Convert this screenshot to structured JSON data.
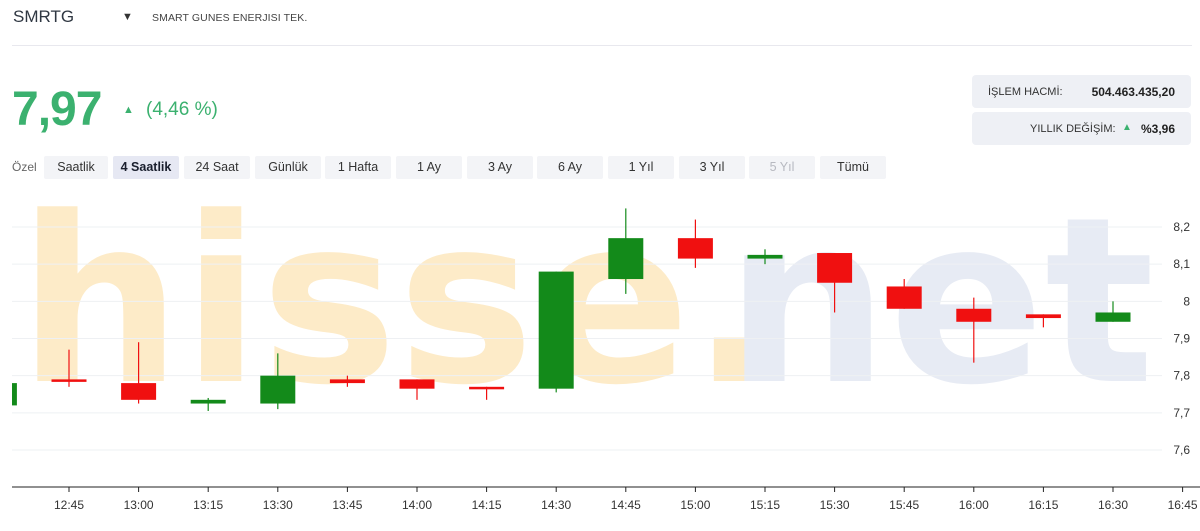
{
  "header": {
    "ticker": "SMRTG",
    "company": "SMART GUNES ENERJISI TEK."
  },
  "quote": {
    "price": "7,97",
    "change_pct": "(4,46 %)",
    "direction": "up"
  },
  "stats": {
    "volume_label": "İŞLEM HACMİ:",
    "volume_value": "504.463.435,20",
    "yearly_label": "YILLIK DEĞİŞİM:",
    "yearly_value": "%3,96"
  },
  "ranges": {
    "label": "Özel",
    "buttons": [
      "Saatlik",
      "4 Saatlik",
      "24 Saat",
      "Günlük",
      "1 Hafta",
      "1 Ay",
      "3 Ay",
      "6 Ay",
      "1 Yıl",
      "3 Yıl",
      "5 Yıl",
      "Tümü"
    ],
    "active": "4 Saatlik",
    "disabled": [
      "5 Yıl"
    ]
  },
  "watermark": {
    "part1": "hisse.",
    "part2": "net",
    "color1": "#fdebc8",
    "color2": "#e7ebf4"
  },
  "colors": {
    "up": "#138a1a",
    "down": "#f01010",
    "price_green": "#3bb16f"
  },
  "chart_data": {
    "type": "candlestick",
    "x_labels": [
      "12:45",
      "13:00",
      "13:15",
      "13:30",
      "13:45",
      "14:00",
      "14:15",
      "14:30",
      "14:45",
      "15:00",
      "15:15",
      "15:30",
      "15:45",
      "16:00",
      "16:15",
      "16:30",
      "16:45"
    ],
    "y_ticks": [
      "7,6",
      "7,7",
      "7,8",
      "7,9",
      "8",
      "8,1",
      "8,2"
    ],
    "y_tick_values": [
      7.6,
      7.7,
      7.8,
      7.9,
      8.0,
      8.1,
      8.2
    ],
    "ylim": [
      7.6,
      8.22
    ],
    "candles": [
      {
        "t": "12:30",
        "open": 7.72,
        "close": 7.78,
        "high": 7.78,
        "low": 7.72
      },
      {
        "t": "12:45",
        "open": 7.79,
        "close": 7.785,
        "high": 7.87,
        "low": 7.77
      },
      {
        "t": "13:00",
        "open": 7.78,
        "close": 7.735,
        "high": 7.89,
        "low": 7.725
      },
      {
        "t": "13:15",
        "open": 7.725,
        "close": 7.735,
        "high": 7.74,
        "low": 7.705
      },
      {
        "t": "13:30",
        "open": 7.725,
        "close": 7.8,
        "high": 7.86,
        "low": 7.71
      },
      {
        "t": "13:45",
        "open": 7.79,
        "close": 7.78,
        "high": 7.8,
        "low": 7.77
      },
      {
        "t": "14:00",
        "open": 7.79,
        "close": 7.765,
        "high": 7.79,
        "low": 7.735
      },
      {
        "t": "14:15",
        "open": 7.77,
        "close": 7.765,
        "high": 7.77,
        "low": 7.735
      },
      {
        "t": "14:30",
        "open": 7.765,
        "close": 8.08,
        "high": 8.08,
        "low": 7.755
      },
      {
        "t": "14:45",
        "open": 8.06,
        "close": 8.17,
        "high": 8.25,
        "low": 8.02
      },
      {
        "t": "15:00",
        "open": 8.17,
        "close": 8.115,
        "high": 8.22,
        "low": 8.09
      },
      {
        "t": "15:15",
        "open": 8.115,
        "close": 8.125,
        "high": 8.14,
        "low": 8.1
      },
      {
        "t": "15:30",
        "open": 8.13,
        "close": 8.05,
        "high": 8.13,
        "low": 7.97
      },
      {
        "t": "15:45",
        "open": 8.04,
        "close": 7.98,
        "high": 8.06,
        "low": 7.98
      },
      {
        "t": "16:00",
        "open": 7.98,
        "close": 7.945,
        "high": 8.01,
        "low": 7.835
      },
      {
        "t": "16:15",
        "open": 7.965,
        "close": 7.955,
        "high": 7.965,
        "low": 7.93
      },
      {
        "t": "16:30",
        "open": 7.945,
        "close": 7.97,
        "high": 8.0,
        "low": 7.945
      }
    ]
  }
}
